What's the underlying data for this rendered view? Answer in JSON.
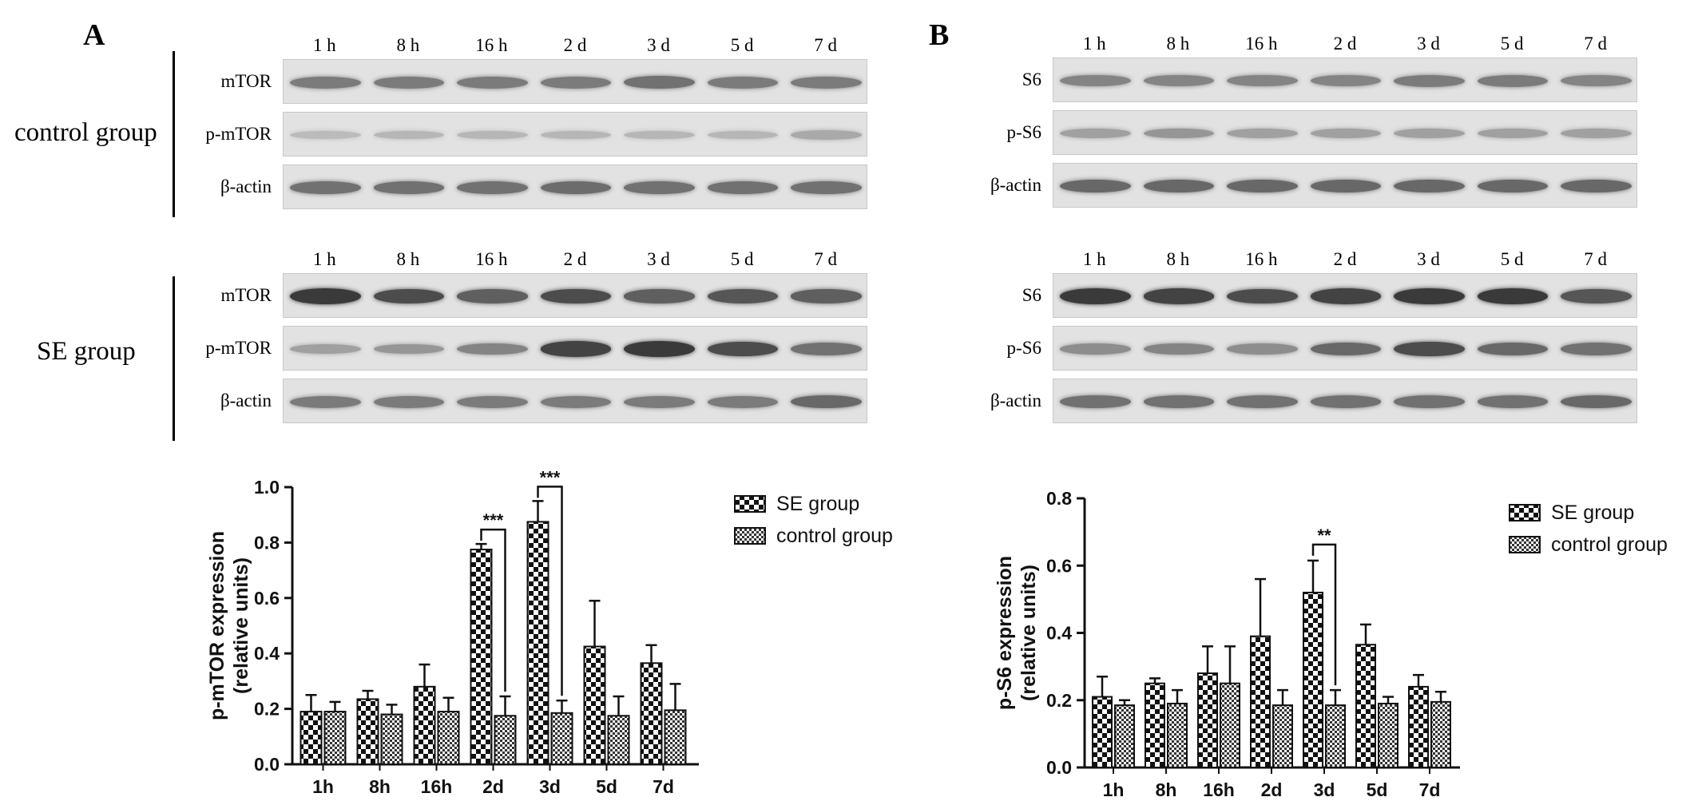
{
  "panels": [
    {
      "letter": "A",
      "groups": [
        {
          "label": "control group",
          "time_labels": [
            "1 h",
            "8 h",
            "16 h",
            "2 d",
            "3 d",
            "5 d",
            "7 d"
          ],
          "rows": [
            {
              "label": "mTOR",
              "intensities": [
                0.5,
                0.5,
                0.5,
                0.5,
                0.55,
                0.5,
                0.5
              ]
            },
            {
              "label": "p-mTOR",
              "intensities": [
                0.15,
                0.18,
                0.18,
                0.18,
                0.18,
                0.18,
                0.25
              ]
            },
            {
              "label": "β-actin",
              "intensities": [
                0.55,
                0.55,
                0.55,
                0.58,
                0.55,
                0.55,
                0.55
              ]
            }
          ]
        },
        {
          "label": "SE group",
          "time_labels": [
            "1 h",
            "8 h",
            "16 h",
            "2 d",
            "3 d",
            "5 d",
            "7 d"
          ],
          "rows": [
            {
              "label": "mTOR",
              "intensities": [
                0.85,
                0.75,
                0.65,
                0.75,
                0.65,
                0.7,
                0.65
              ]
            },
            {
              "label": "p-mTOR",
              "intensities": [
                0.3,
                0.35,
                0.45,
                0.8,
                0.85,
                0.75,
                0.55
              ]
            },
            {
              "label": "β-actin",
              "intensities": [
                0.5,
                0.5,
                0.5,
                0.5,
                0.5,
                0.5,
                0.6
              ]
            }
          ]
        }
      ]
    },
    {
      "letter": "B",
      "groups": [
        {
          "label": "",
          "time_labels": [
            "1 h",
            "8 h",
            "16 h",
            "2 d",
            "3 d",
            "5 d",
            "7 d"
          ],
          "rows": [
            {
              "label": "S6",
              "intensities": [
                0.45,
                0.45,
                0.45,
                0.45,
                0.5,
                0.5,
                0.45
              ]
            },
            {
              "label": "p-S6",
              "intensities": [
                0.3,
                0.35,
                0.3,
                0.3,
                0.3,
                0.3,
                0.3
              ]
            },
            {
              "label": "β-actin",
              "intensities": [
                0.6,
                0.6,
                0.6,
                0.6,
                0.6,
                0.6,
                0.6
              ]
            }
          ]
        },
        {
          "label": "",
          "time_labels": [
            "1 h",
            "8 h",
            "16 h",
            "2 d",
            "3 d",
            "5 d",
            "7 d"
          ],
          "rows": [
            {
              "label": "S6",
              "intensities": [
                0.85,
                0.8,
                0.75,
                0.8,
                0.85,
                0.85,
                0.7
              ]
            },
            {
              "label": "p-S6",
              "intensities": [
                0.4,
                0.45,
                0.4,
                0.6,
                0.75,
                0.6,
                0.55
              ]
            },
            {
              "label": "β-actin",
              "intensities": [
                0.55,
                0.55,
                0.55,
                0.55,
                0.55,
                0.55,
                0.6
              ]
            }
          ]
        }
      ]
    }
  ],
  "chart_data": [
    {
      "type": "bar",
      "title": "",
      "xlabel": "",
      "ylabel": "p-mTOR expression\n(relative units)",
      "categories": [
        "1h",
        "8h",
        "16h",
        "2d",
        "3d",
        "5d",
        "7d"
      ],
      "ylim": [
        0,
        1.0
      ],
      "yticks": [
        "0.0",
        "0.2",
        "0.4",
        "0.6",
        "0.8",
        "1.0"
      ],
      "series": [
        {
          "name": "SE group",
          "values": [
            0.19,
            0.235,
            0.28,
            0.775,
            0.875,
            0.425,
            0.365
          ],
          "errors": [
            0.06,
            0.03,
            0.08,
            0.02,
            0.075,
            0.165,
            0.065
          ]
        },
        {
          "name": "control group",
          "values": [
            0.19,
            0.18,
            0.19,
            0.175,
            0.185,
            0.175,
            0.195
          ],
          "errors": [
            0.035,
            0.035,
            0.05,
            0.07,
            0.045,
            0.07,
            0.095
          ]
        }
      ],
      "significance": [
        {
          "category": "2d",
          "label": "***"
        },
        {
          "category": "3d",
          "label": "***"
        }
      ],
      "legend_position": "right",
      "grid": false
    },
    {
      "type": "bar",
      "title": "",
      "xlabel": "",
      "ylabel": "p-S6 expression\n(relative units)",
      "categories": [
        "1h",
        "8h",
        "16h",
        "2d",
        "3d",
        "5d",
        "7d"
      ],
      "ylim": [
        0,
        0.8
      ],
      "yticks": [
        "0.0",
        "0.2",
        "0.4",
        "0.6",
        "0.8"
      ],
      "series": [
        {
          "name": "SE group",
          "values": [
            0.21,
            0.25,
            0.28,
            0.39,
            0.52,
            0.365,
            0.24
          ],
          "errors": [
            0.06,
            0.015,
            0.08,
            0.17,
            0.095,
            0.06,
            0.035
          ]
        },
        {
          "name": "control group",
          "values": [
            0.185,
            0.19,
            0.25,
            0.185,
            0.185,
            0.19,
            0.195
          ],
          "errors": [
            0.015,
            0.04,
            0.11,
            0.045,
            0.045,
            0.02,
            0.03
          ]
        }
      ],
      "significance": [
        {
          "category": "3d",
          "label": "**"
        }
      ],
      "legend_position": "right",
      "grid": false
    }
  ]
}
